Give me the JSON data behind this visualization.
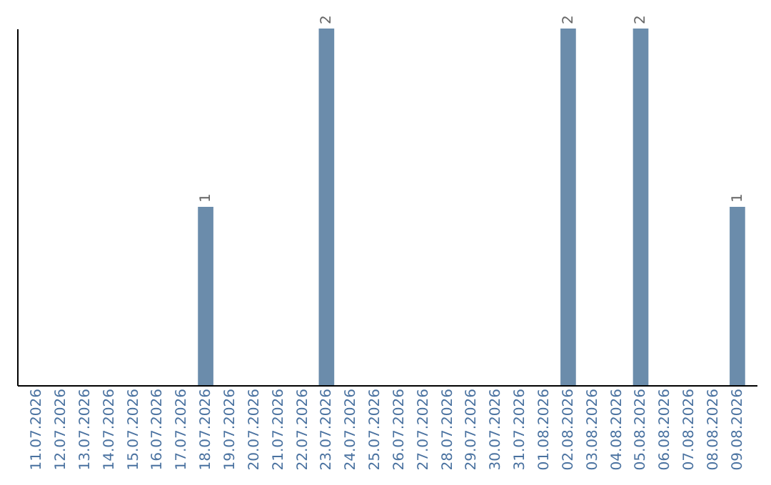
{
  "chart_data": {
    "type": "bar",
    "categories": [
      "11.07.2026",
      "12.07.2026",
      "13.07.2026",
      "14.07.2026",
      "15.07.2026",
      "16.07.2026",
      "17.07.2026",
      "18.07.2026",
      "19.07.2026",
      "20.07.2026",
      "21.07.2026",
      "22.07.2026",
      "23.07.2026",
      "24.07.2026",
      "25.07.2026",
      "26.07.2026",
      "27.07.2026",
      "28.07.2026",
      "29.07.2026",
      "30.07.2026",
      "31.07.2026",
      "01.08.2026",
      "02.08.2026",
      "03.08.2026",
      "04.08.2026",
      "05.08.2026",
      "06.08.2026",
      "07.08.2026",
      "08.08.2026",
      "09.08.2026"
    ],
    "values": [
      0,
      0,
      0,
      0,
      0,
      0,
      0,
      1,
      0,
      0,
      0,
      0,
      2,
      0,
      0,
      0,
      0,
      0,
      0,
      0,
      0,
      0,
      2,
      0,
      0,
      2,
      0,
      0,
      0,
      1
    ],
    "value_labels": [
      null,
      null,
      null,
      null,
      null,
      null,
      null,
      "1",
      null,
      null,
      null,
      null,
      "2",
      null,
      null,
      null,
      null,
      null,
      null,
      null,
      null,
      null,
      "2",
      null,
      null,
      "2",
      null,
      null,
      null,
      "1"
    ],
    "color": "#6b8cab",
    "ylim": [
      0,
      2
    ],
    "tick_labels": "x"
  }
}
